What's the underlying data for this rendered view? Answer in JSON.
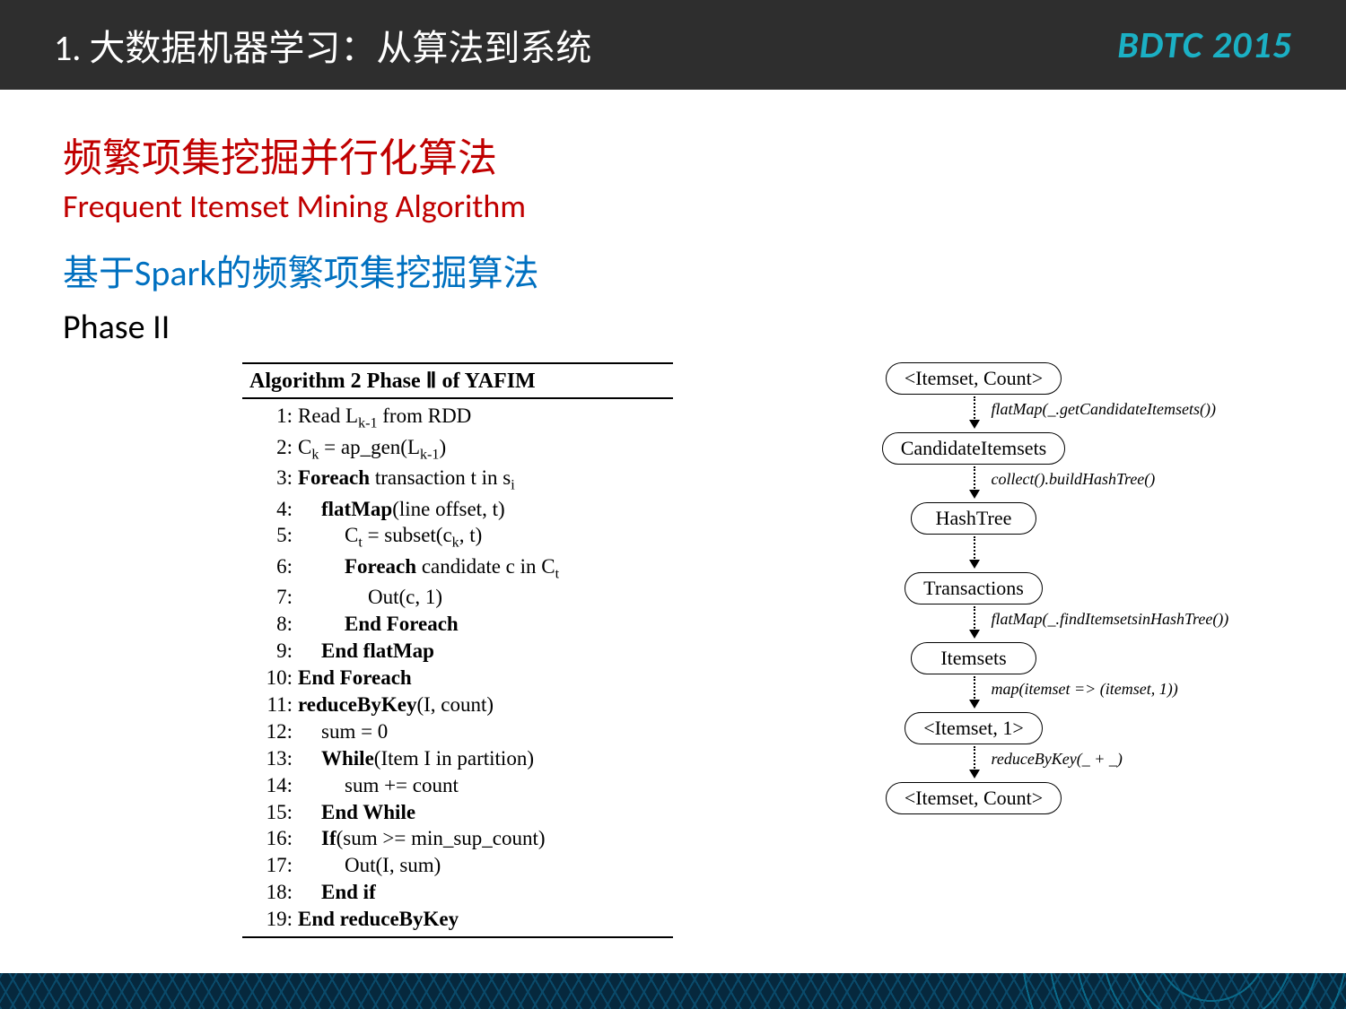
{
  "header": {
    "title": "1. 大数据机器学习：从算法到系统",
    "logo": "BDTC 2015"
  },
  "colors": {
    "header_bg": "#2e2e2e",
    "header_text": "#ffffff",
    "logo_color": "#1bb0c4",
    "title_red": "#c00000",
    "subtitle_blue": "#0070c0",
    "body_text": "#000000",
    "flow_border": "#000000"
  },
  "titles": {
    "cn": "频繁项集挖掘并行化算法",
    "en": "Frequent Itemset Mining Algorithm",
    "spark": "基于Spark的频繁项集挖掘算法",
    "phase": "Phase II"
  },
  "algorithm": {
    "title": "Algorithm 2 Phase Ⅱ of YAFIM",
    "lines": [
      {
        "num": "1:",
        "indent": 0,
        "html": "Read L<sub>k-1</sub> from RDD"
      },
      {
        "num": "2:",
        "indent": 0,
        "html": "C<sub>k</sub> = ap_gen(L<sub>k-1</sub>)"
      },
      {
        "num": "3:",
        "indent": 0,
        "html": "<span class='b'>Foreach</span> transaction t in s<sub>i</sub>"
      },
      {
        "num": "4:",
        "indent": 1,
        "html": "<span class='b'>flatMap</span>(line offset, t)"
      },
      {
        "num": "5:",
        "indent": 2,
        "html": "C<sub>t</sub> = subset(c<sub>k</sub>, t)"
      },
      {
        "num": "6:",
        "indent": 2,
        "html": "<span class='b'>Foreach</span> candidate c in C<sub>t</sub>"
      },
      {
        "num": "7:",
        "indent": 3,
        "html": "Out(c, 1)"
      },
      {
        "num": "8:",
        "indent": 2,
        "html": "<span class='b'>End Foreach</span>"
      },
      {
        "num": "9:",
        "indent": 1,
        "html": "<span class='b'>End flatMap</span>"
      },
      {
        "num": "10:",
        "indent": 0,
        "html": "<span class='b'>End Foreach</span>"
      },
      {
        "num": "11:",
        "indent": 0,
        "html": "<span class='b'>reduceByKey</span>(I, count)"
      },
      {
        "num": "12:",
        "indent": 1,
        "html": "sum = 0"
      },
      {
        "num": "13:",
        "indent": 1,
        "html": "<span class='b'>While</span>(Item I in partition)"
      },
      {
        "num": "14:",
        "indent": 2,
        "html": "sum += count"
      },
      {
        "num": "15:",
        "indent": 1,
        "html": "<span class='b'>End While</span>"
      },
      {
        "num": "16:",
        "indent": 1,
        "html": "<span class='b'>If</span>(sum >= min_sup_count)"
      },
      {
        "num": "17:",
        "indent": 2,
        "html": "Out(I, sum)"
      },
      {
        "num": "18:",
        "indent": 1,
        "html": "<span class='b'>End if</span>"
      },
      {
        "num": "19:",
        "indent": 0,
        "html": "<span class='b'>End reduceByKey</span>"
      }
    ]
  },
  "flowchart": {
    "node_border_radius": 18,
    "node_font_size": 22,
    "label_font_size": 18,
    "arrow_style": "dotted",
    "nodes": [
      {
        "label": "<Itemset, Count>"
      },
      {
        "label": "CandidateItemsets"
      },
      {
        "label": "HashTree"
      },
      {
        "label": "Transactions"
      },
      {
        "label": "Itemsets"
      },
      {
        "label": "<Itemset, 1>"
      },
      {
        "label": "<Itemset, Count>"
      }
    ],
    "edges": [
      {
        "label": "flatMap(_.getCandidateItemsets())"
      },
      {
        "label": "collect().buildHashTree()"
      },
      {
        "label": ""
      },
      {
        "label": "flatMap(_.findItemsetsinHashTree())"
      },
      {
        "label": "map(itemset => (itemset, 1))"
      },
      {
        "label": "reduceByKey(_ + _)"
      }
    ]
  }
}
